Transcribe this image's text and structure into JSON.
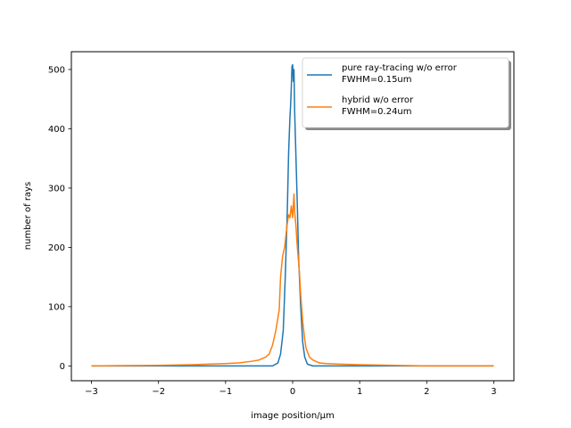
{
  "chart_data": {
    "type": "line",
    "xlabel": "image position/μm",
    "ylabel": "number of rays",
    "xlim": [
      -3.3,
      3.3
    ],
    "ylim": [
      -25,
      530
    ],
    "xticks": [
      -3,
      -2,
      -1,
      0,
      1,
      2,
      3
    ],
    "xtick_labels": [
      "−3",
      "−2",
      "−1",
      "0",
      "1",
      "2",
      "3"
    ],
    "yticks": [
      0,
      100,
      200,
      300,
      400,
      500
    ],
    "ytick_labels": [
      "0",
      "100",
      "200",
      "300",
      "400",
      "500"
    ],
    "grid": false,
    "legend_position": "top-right",
    "series": [
      {
        "name": "pure ray-tracing w/o error\nFWHM=0.15um",
        "legend_lines": [
          "pure ray-tracing w/o error",
          "FWHM=0.15um"
        ],
        "color": "#1f77b4",
        "x": [
          -3.0,
          -0.5,
          -0.3,
          -0.22,
          -0.18,
          -0.14,
          -0.11,
          -0.08,
          -0.06,
          -0.04,
          -0.03,
          -0.02,
          -0.01,
          0.0,
          0.01,
          0.02,
          0.03,
          0.05,
          0.07,
          0.09,
          0.12,
          0.15,
          0.18,
          0.22,
          0.3,
          0.5,
          3.0
        ],
        "y": [
          0,
          0,
          0,
          5,
          20,
          60,
          150,
          260,
          360,
          420,
          440,
          470,
          505,
          508,
          480,
          500,
          430,
          350,
          270,
          180,
          100,
          40,
          15,
          3,
          0,
          0,
          0
        ]
      },
      {
        "name": "hybrid w/o error\nFWHM=0.24um",
        "legend_lines": [
          "hybrid w/o error",
          "FWHM=0.24um"
        ],
        "color": "#ff7f0e",
        "x": [
          -3.0,
          -2.0,
          -1.5,
          -1.0,
          -0.8,
          -0.6,
          -0.5,
          -0.4,
          -0.35,
          -0.3,
          -0.25,
          -0.2,
          -0.18,
          -0.15,
          -0.12,
          -0.1,
          -0.08,
          -0.06,
          -0.04,
          -0.02,
          0.0,
          0.02,
          0.03,
          0.05,
          0.07,
          0.1,
          0.12,
          0.15,
          0.18,
          0.2,
          0.25,
          0.3,
          0.4,
          0.5,
          0.7,
          1.0,
          1.5,
          2.0,
          3.0
        ],
        "y": [
          0,
          1,
          2,
          4,
          5,
          8,
          10,
          15,
          20,
          35,
          60,
          95,
          150,
          185,
          200,
          220,
          240,
          255,
          250,
          270,
          250,
          290,
          260,
          235,
          200,
          160,
          120,
          75,
          45,
          30,
          15,
          10,
          5,
          4,
          3,
          2,
          1,
          0,
          0
        ]
      }
    ]
  }
}
